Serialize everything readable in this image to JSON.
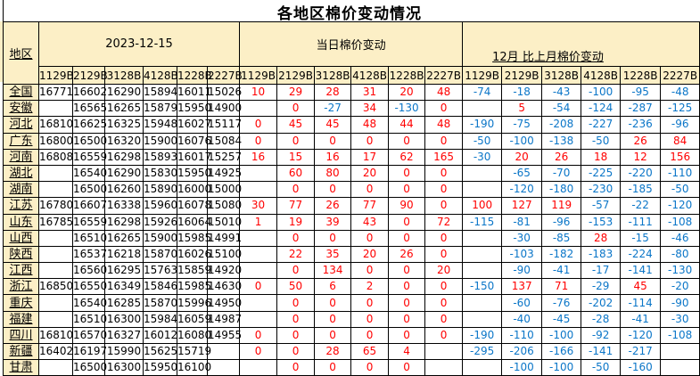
{
  "title": "各地区棉价变动情况",
  "table": {
    "region_header": "地区",
    "date_group": "2023-12-15",
    "daily_group": "当日棉价变动",
    "monthly_group": "12月 比上月棉价变动",
    "grades": [
      "1129B",
      "2129B",
      "3128B",
      "4128B",
      "1228B",
      "2227B"
    ],
    "colors": {
      "positive": "#FF0000",
      "negative": "#0B76C8",
      "header_bg": "#FCEFC6",
      "grid_line": "#000000"
    },
    "rows": [
      {
        "region": "全国",
        "prices": [
          16771,
          16602,
          16290,
          15894,
          16011,
          15026
        ],
        "daily": [
          10,
          29,
          28,
          31,
          20,
          48
        ],
        "monthly": [
          -74,
          -18,
          -43,
          -100,
          -95,
          -48
        ]
      },
      {
        "region": "安徽",
        "prices": [
          "",
          16565,
          16265,
          15879,
          15950,
          14900
        ],
        "daily": [
          "",
          0,
          -27,
          34,
          -130,
          0
        ],
        "monthly": [
          "",
          5,
          -54,
          -124,
          -287,
          -125
        ]
      },
      {
        "region": "河北",
        "prices": [
          16810,
          16625,
          16325,
          15948,
          16027,
          15117
        ],
        "daily": [
          0,
          45,
          45,
          48,
          44,
          48
        ],
        "monthly": [
          -190,
          -75,
          -208,
          -227,
          -236,
          -96
        ]
      },
      {
        "region": "广东",
        "prices": [
          16800,
          16500,
          16320,
          15900,
          16076,
          15084
        ],
        "daily": [
          0,
          0,
          0,
          0,
          0,
          0
        ],
        "monthly": [
          -50,
          -100,
          -138,
          -50,
          26,
          84
        ]
      },
      {
        "region": "河南",
        "prices": [
          16808,
          16559,
          16298,
          15893,
          16017,
          15257
        ],
        "daily": [
          16,
          15,
          16,
          17,
          62,
          165
        ],
        "monthly": [
          -30,
          20,
          26,
          18,
          12,
          156
        ]
      },
      {
        "region": "湖北",
        "prices": [
          "",
          16540,
          16290,
          15830,
          15950,
          14925
        ],
        "daily": [
          "",
          60,
          80,
          20,
          0,
          0
        ],
        "monthly": [
          "",
          -65,
          -70,
          -225,
          -220,
          -110
        ]
      },
      {
        "region": "湖南",
        "prices": [
          "",
          16500,
          16260,
          15890,
          16000,
          15000
        ],
        "daily": [
          "",
          0,
          0,
          0,
          0,
          0
        ],
        "monthly": [
          "",
          -120,
          -180,
          -230,
          -185,
          -50
        ]
      },
      {
        "region": "江苏",
        "prices": [
          16780,
          16607,
          16338,
          15960,
          16078,
          15080
        ],
        "daily": [
          30,
          77,
          26,
          77,
          90,
          0
        ],
        "monthly": [
          100,
          127,
          119,
          -57,
          -22,
          -120
        ]
      },
      {
        "region": "山东",
        "prices": [
          16785,
          16559,
          16298,
          15926,
          16064,
          15010
        ],
        "daily": [
          1,
          19,
          39,
          43,
          0,
          72
        ],
        "monthly": [
          -115,
          -81,
          -96,
          -153,
          -111,
          -108
        ]
      },
      {
        "region": "山西",
        "prices": [
          "",
          16510,
          16265,
          15900,
          15985,
          14991
        ],
        "daily": [
          "",
          0,
          0,
          0,
          0,
          0
        ],
        "monthly": [
          "",
          -30,
          -85,
          28,
          -15,
          -46
        ]
      },
      {
        "region": "陕西",
        "prices": [
          "",
          16537,
          16218,
          15870,
          16026,
          15100
        ],
        "daily": [
          "",
          22,
          35,
          20,
          26,
          0
        ],
        "monthly": [
          "",
          -103,
          -182,
          -183,
          -224,
          -80
        ]
      },
      {
        "region": "江西",
        "prices": [
          "",
          16560,
          16295,
          15763,
          15859,
          14920
        ],
        "daily": [
          "",
          0,
          134,
          0,
          0,
          20
        ],
        "monthly": [
          "",
          -90,
          -41,
          -17,
          -141,
          -130
        ]
      },
      {
        "region": "浙江",
        "prices": [
          16850,
          16550,
          16349,
          15846,
          15985,
          14630
        ],
        "daily": [
          0,
          50,
          6,
          2,
          0,
          0
        ],
        "monthly": [
          -150,
          137,
          71,
          -29,
          45,
          -20
        ]
      },
      {
        "region": "重庆",
        "prices": [
          "",
          16540,
          16285,
          15870,
          15996,
          14950
        ],
        "daily": [
          "",
          0,
          0,
          0,
          0,
          0
        ],
        "monthly": [
          "",
          -60,
          -76,
          -202,
          -114,
          -90
        ]
      },
      {
        "region": "福建",
        "prices": [
          "",
          16510,
          16300,
          15984,
          16059,
          14987
        ],
        "daily": [
          "",
          0,
          0,
          0,
          0,
          0
        ],
        "monthly": [
          "",
          -40,
          -45,
          -28,
          -41,
          -30
        ]
      },
      {
        "region": "四川",
        "prices": [
          16810,
          16570,
          16327,
          16012,
          16080,
          14955
        ],
        "daily": [
          0,
          0,
          0,
          0,
          0,
          0
        ],
        "monthly": [
          -190,
          -110,
          -100,
          -92,
          -120,
          -108
        ]
      },
      {
        "region": "新疆",
        "prices": [
          16402,
          16197,
          15990,
          15625,
          15719,
          ""
        ],
        "daily": [
          0,
          0,
          28,
          65,
          4,
          ""
        ],
        "monthly": [
          -295,
          -206,
          -166,
          -141,
          -217,
          ""
        ]
      },
      {
        "region": "甘肃",
        "prices": [
          "",
          16500,
          16300,
          15950,
          16100,
          ""
        ],
        "daily": [
          "",
          0,
          0,
          0,
          0,
          ""
        ],
        "monthly": [
          "",
          -100,
          -100,
          -50,
          -160,
          ""
        ]
      }
    ]
  }
}
